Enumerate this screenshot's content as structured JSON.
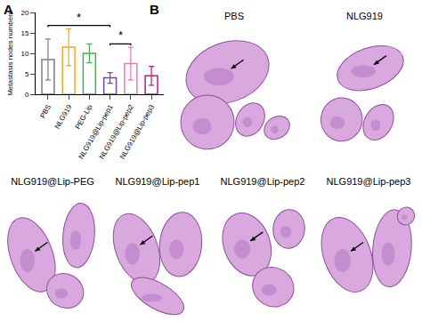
{
  "chart_data": {
    "type": "bar",
    "panel_label": "A",
    "y_label": "Metastasis nodes numbers",
    "categories": [
      "PBS",
      "NLG919",
      "PEG-Lip",
      "NLG919@Lip-pep1",
      "NLG919@Lip-pep2",
      "NLG919@Lip-pep3"
    ],
    "values": [
      8.5,
      11.5,
      10,
      4,
      7.5,
      4.5
    ],
    "errors": [
      5,
      4.5,
      2.3,
      1.3,
      4,
      2.3
    ],
    "colors": [
      "#7f7f7f",
      "#f5a623",
      "#3cb44b",
      "#7b3fbf",
      "#ff6fb5",
      "#c2187f"
    ],
    "ylim": [
      0,
      20
    ],
    "yticks": [
      0,
      5,
      10,
      15,
      20
    ],
    "grid": false,
    "annotations": [
      {
        "text": "*",
        "from": "PBS",
        "to": "NLG919@Lip-pep1"
      },
      {
        "text": "*",
        "from": "NLG919@Lip-pep1",
        "to": "NLG919@Lip-pep2"
      }
    ]
  },
  "panel_b": {
    "label": "B",
    "images": [
      "PBS",
      "NLG919",
      "NLG919@Lip-PEG",
      "NLG919@Lip-pep1",
      "NLG919@Lip-pep2",
      "NLG919@Lip-pep3"
    ]
  }
}
